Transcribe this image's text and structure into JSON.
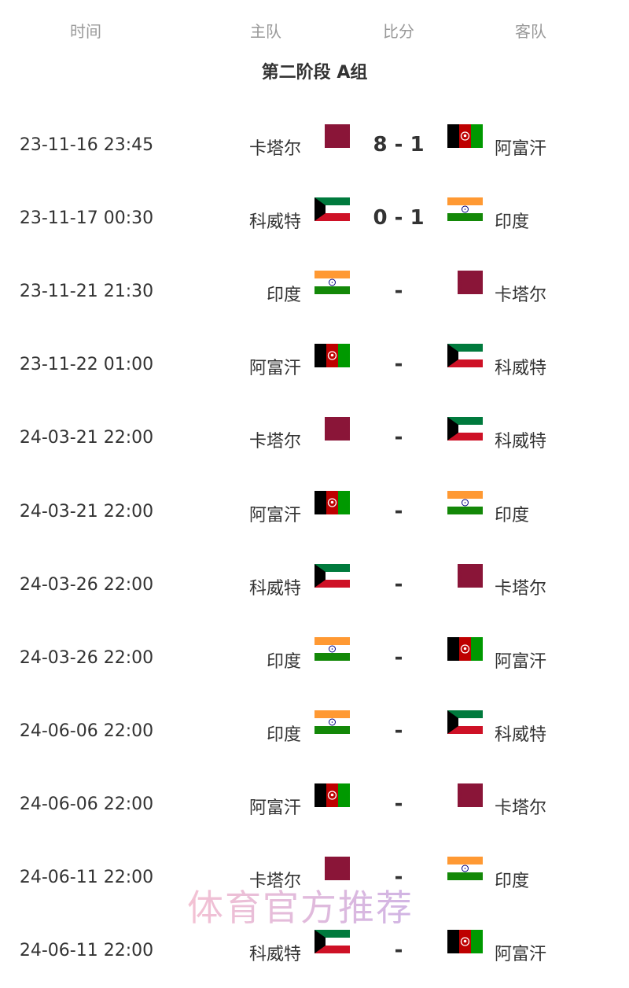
{
  "header": {
    "time": "时间",
    "home": "主队",
    "score": "比分",
    "away": "客队"
  },
  "group_title": "第二阶段 A组",
  "flags": {
    "卡塔尔": "qatar-flag-icon",
    "阿富汗": "afghanistan-flag-icon",
    "科威特": "kuwait-flag-icon",
    "印度": "india-flag-icon"
  },
  "colors": {
    "qatar": "#8a1538",
    "afghan_black": "#000000",
    "afghan_red": "#be0000",
    "afghan_green": "#009900",
    "kuwait_green": "#007a3d",
    "kuwait_red": "#ce1126",
    "india_saffron": "#ff9933",
    "india_green": "#138808",
    "india_chakra": "#000080"
  },
  "matches": [
    {
      "time": "23-11-16 23:45",
      "home": "卡塔尔",
      "score": "8 - 1",
      "away": "阿富汗"
    },
    {
      "time": "23-11-17 00:30",
      "home": "科威特",
      "score": "0 - 1",
      "away": "印度"
    },
    {
      "time": "23-11-21 21:30",
      "home": "印度",
      "score": "-",
      "away": "卡塔尔"
    },
    {
      "time": "23-11-22 01:00",
      "home": "阿富汗",
      "score": "-",
      "away": "科威特"
    },
    {
      "time": "24-03-21 22:00",
      "home": "卡塔尔",
      "score": "-",
      "away": "科威特"
    },
    {
      "time": "24-03-21 22:00",
      "home": "阿富汗",
      "score": "-",
      "away": "印度"
    },
    {
      "time": "24-03-26 22:00",
      "home": "科威特",
      "score": "-",
      "away": "卡塔尔"
    },
    {
      "time": "24-03-26 22:00",
      "home": "印度",
      "score": "-",
      "away": "阿富汗"
    },
    {
      "time": "24-06-06 22:00",
      "home": "印度",
      "score": "-",
      "away": "科威特"
    },
    {
      "time": "24-06-06 22:00",
      "home": "阿富汗",
      "score": "-",
      "away": "卡塔尔"
    },
    {
      "time": "24-06-11 22:00",
      "home": "卡塔尔",
      "score": "-",
      "away": "印度"
    },
    {
      "time": "24-06-11 22:00",
      "home": "科威特",
      "score": "-",
      "away": "阿富汗"
    }
  ],
  "watermark": "体育官方推荐"
}
